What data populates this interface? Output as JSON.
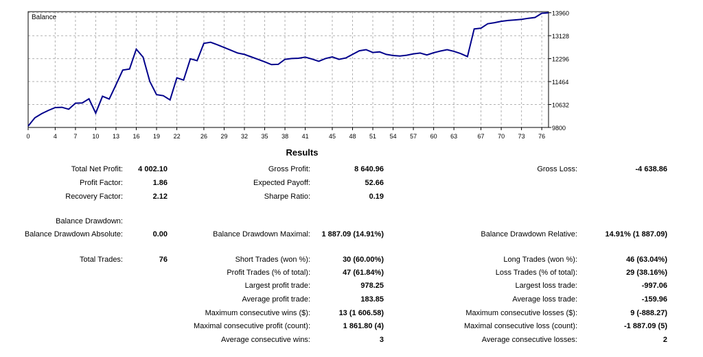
{
  "chart_data": {
    "type": "line",
    "title": "Balance",
    "x_ticks": [
      "0",
      "4",
      "7",
      "10",
      "13",
      "16",
      "19",
      "22",
      "26",
      "29",
      "32",
      "35",
      "38",
      "41",
      "45",
      "48",
      "51",
      "54",
      "57",
      "60",
      "63",
      "67",
      "70",
      "73",
      "76"
    ],
    "y_ticks": [
      "13960",
      "13128",
      "12296",
      "11464",
      "10632",
      "9800"
    ],
    "ylim": [
      9800,
      14000
    ],
    "xlim": [
      0,
      77
    ],
    "grid": true,
    "color": "#00008b",
    "series": [
      {
        "x": [
          0,
          1,
          2,
          3,
          4,
          5,
          6,
          7,
          8,
          9,
          10,
          11,
          12,
          13,
          14,
          15,
          16,
          17,
          18,
          19,
          20,
          21,
          22,
          23,
          24,
          25,
          26,
          27,
          28,
          29,
          30,
          31,
          32,
          33,
          34,
          35,
          36,
          37,
          38,
          39,
          40,
          41,
          42,
          43,
          44,
          45,
          46,
          47,
          48,
          49,
          50,
          51,
          52,
          53,
          54,
          55,
          56,
          57,
          58,
          59,
          60,
          61,
          62,
          63,
          64,
          65,
          66,
          67,
          68,
          69,
          70,
          71,
          72,
          73,
          74,
          75,
          76,
          77
        ],
        "y": [
          9850,
          10150,
          10300,
          10420,
          10520,
          10530,
          10460,
          10680,
          10690,
          10840,
          10320,
          10930,
          10830,
          11350,
          11880,
          11920,
          12640,
          12350,
          11470,
          10990,
          10950,
          10800,
          11600,
          11520,
          12290,
          12220,
          12850,
          12890,
          12800,
          12700,
          12600,
          12500,
          12450,
          12360,
          12270,
          12180,
          12080,
          12090,
          12270,
          12300,
          12310,
          12350,
          12280,
          12200,
          12300,
          12360,
          12270,
          12320,
          12450,
          12580,
          12620,
          12520,
          12540,
          12450,
          12410,
          12390,
          12420,
          12470,
          12500,
          12430,
          12510,
          12570,
          12620,
          12560,
          12480,
          12370,
          13370,
          13400,
          13560,
          13600,
          13650,
          13680,
          13700,
          13720,
          13760,
          13790,
          13940,
          13960
        ]
      }
    ]
  },
  "results": {
    "title": "Results",
    "rows": [
      {
        "c1_label": "Total Net Profit:",
        "c1_value": "4 002.10",
        "c2_label": "Gross Profit:",
        "c2_value": "8 640.96",
        "c3_label": "Gross Loss:",
        "c3_value": "-4 638.86"
      },
      {
        "c1_label": "Profit Factor:",
        "c1_value": "1.86",
        "c2_label": "Expected Payoff:",
        "c2_value": "52.66",
        "c3_label": "",
        "c3_value": ""
      },
      {
        "c1_label": "Recovery Factor:",
        "c1_value": "2.12",
        "c2_label": "Sharpe Ratio:",
        "c2_value": "0.19",
        "c3_label": "",
        "c3_value": ""
      },
      {
        "c1_label": "Balance Drawdown:",
        "c1_value": "",
        "c2_label": "",
        "c2_value": "",
        "c3_label": "",
        "c3_value": ""
      },
      {
        "c1_label": "Balance Drawdown Absolute:",
        "c1_value": "0.00",
        "c2_label": "Balance Drawdown Maximal:",
        "c2_value": "1 887.09 (14.91%)",
        "c3_label": "Balance Drawdown Relative:",
        "c3_value": "14.91% (1 887.09)"
      },
      {
        "c1_label": "Total Trades:",
        "c1_value": "76",
        "c2_label": "Short Trades (won %):",
        "c2_value": "30 (60.00%)",
        "c3_label": "Long Trades (won %):",
        "c3_value": "46 (63.04%)"
      },
      {
        "c1_label": "",
        "c1_value": "",
        "c2_label": "Profit Trades (% of total):",
        "c2_value": "47 (61.84%)",
        "c3_label": "Loss Trades (% of total):",
        "c3_value": "29 (38.16%)"
      },
      {
        "c1_label": "",
        "c1_value": "",
        "c2_label": "Largest profit trade:",
        "c2_value": "978.25",
        "c3_label": "Largest loss trade:",
        "c3_value": "-997.06"
      },
      {
        "c1_label": "",
        "c1_value": "",
        "c2_label": "Average profit trade:",
        "c2_value": "183.85",
        "c3_label": "Average loss trade:",
        "c3_value": "-159.96"
      },
      {
        "c1_label": "",
        "c1_value": "",
        "c2_label": "Maximum consecutive wins ($):",
        "c2_value": "13 (1 606.58)",
        "c3_label": "Maximum consecutive losses ($):",
        "c3_value": "9 (-888.27)"
      },
      {
        "c1_label": "",
        "c1_value": "",
        "c2_label": "Maximal consecutive profit (count):",
        "c2_value": "1 861.80 (4)",
        "c3_label": "Maximal consecutive loss (count):",
        "c3_value": "-1 887.09 (5)"
      },
      {
        "c1_label": "",
        "c1_value": "",
        "c2_label": "Average consecutive wins:",
        "c2_value": "3",
        "c3_label": "Average consecutive losses:",
        "c3_value": "2"
      }
    ]
  }
}
